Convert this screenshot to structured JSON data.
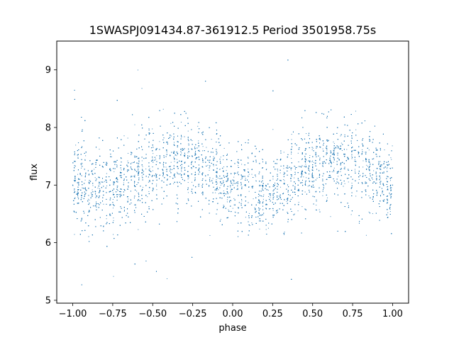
{
  "chart_data": {
    "type": "scatter",
    "title": "1SWASPJ091434.87-361912.5 Period 3501958.75s",
    "xlabel": "phase",
    "ylabel": "flux",
    "xlim": [
      -1.1,
      1.1
    ],
    "ylim": [
      4.95,
      9.5
    ],
    "x_ticks": [
      -1.0,
      -0.75,
      -0.5,
      -0.25,
      0.0,
      0.25,
      0.5,
      0.75,
      1.0
    ],
    "x_tick_labels": [
      "−1.00",
      "−0.75",
      "−0.50",
      "−0.25",
      "0.00",
      "0.25",
      "0.50",
      "0.75",
      "1.00"
    ],
    "y_ticks": [
      5,
      6,
      7,
      8,
      9
    ],
    "y_tick_labels": [
      "5",
      "6",
      "7",
      "8",
      "9"
    ],
    "grid": false,
    "legend": "none",
    "marker_color": "#1f77b4",
    "trend": {
      "phase": [
        -1.0,
        -0.9,
        -0.8,
        -0.75,
        -0.7,
        -0.6,
        -0.5,
        -0.4,
        -0.3,
        -0.25,
        -0.2,
        -0.1,
        0.0,
        0.1,
        0.2,
        0.25,
        0.3,
        0.4,
        0.5,
        0.6,
        0.7,
        0.75,
        0.8,
        0.9,
        1.0
      ],
      "flux": [
        7.0,
        6.95,
        6.9,
        6.92,
        7.0,
        7.15,
        7.3,
        7.4,
        7.45,
        7.4,
        7.35,
        7.2,
        7.0,
        6.95,
        6.9,
        6.92,
        7.0,
        7.15,
        7.3,
        7.4,
        7.45,
        7.4,
        7.35,
        7.2,
        7.0
      ]
    },
    "scatter_spread": 0.35,
    "outlier_range": [
      5.2,
      9.2
    ],
    "sample_points": [
      {
        "x": -1.0,
        "y": 7.0
      },
      {
        "x": -0.75,
        "y": 6.7
      },
      {
        "x": -0.55,
        "y": 7.8
      },
      {
        "x": -0.3,
        "y": 7.5
      },
      {
        "x": 0.0,
        "y": 7.0
      },
      {
        "x": 0.25,
        "y": 6.7
      },
      {
        "x": 0.45,
        "y": 7.8
      },
      {
        "x": 0.7,
        "y": 7.5
      },
      {
        "x": 1.0,
        "y": 7.0
      }
    ]
  }
}
